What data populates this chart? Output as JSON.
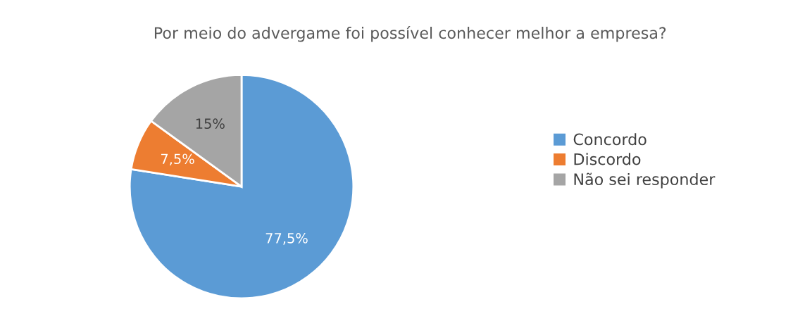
{
  "chart_data": {
    "type": "pie",
    "title": "Por meio do advergame foi possível conhecer melhor a empresa?",
    "categories": [
      "Concordo",
      "Discordo",
      "Não sei responder"
    ],
    "values": [
      77.5,
      7.5,
      15
    ],
    "colors": [
      "#5b9bd5",
      "#ed7d31",
      "#a5a5a5"
    ],
    "value_labels": [
      "77,5%",
      "7,5%",
      "15%"
    ],
    "legend": "right"
  }
}
